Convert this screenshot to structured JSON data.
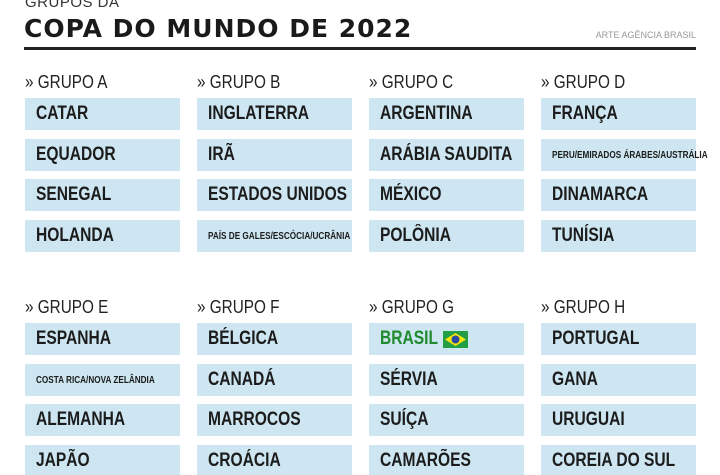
{
  "header": {
    "supertitle": "GRUPOS DA",
    "title": "COPA DO MUNDO DE 2022",
    "credit": "ARTE AGÊNCIA BRASIL"
  },
  "groups": [
    {
      "name": "» GRUPO A",
      "teams": [
        "CATAR",
        "EQUADOR",
        "SENEGAL",
        "HOLANDA"
      ]
    },
    {
      "name": "» GRUPO B",
      "teams": [
        "INGLATERRA",
        "IRÃ",
        "ESTADOS UNIDOS",
        "PAÍS DE GALES/ESCÓCIA/UCRÂNIA"
      ]
    },
    {
      "name": "» GRUPO C",
      "teams": [
        "ARGENTINA",
        "ARÁBIA SAUDITA",
        "MÉXICO",
        "POLÔNIA"
      ]
    },
    {
      "name": "» GRUPO D",
      "teams": [
        "FRANÇA",
        "PERU/EMIRADOS ÁRABES/AUSTRÁLIA",
        "DINAMARCA",
        "TUNÍSIA"
      ]
    },
    {
      "name": "» GRUPO E",
      "teams": [
        "ESPANHA",
        "COSTA RICA/NOVA ZELÂNDIA",
        "ALEMANHA",
        "JAPÃO"
      ]
    },
    {
      "name": "» GRUPO F",
      "teams": [
        "BÉLGICA",
        "CANADÁ",
        "MARROCOS",
        "CROÁCIA"
      ]
    },
    {
      "name": "» GRUPO G",
      "teams": [
        "BRASIL",
        "SÉRVIA",
        "SUÍÇA",
        "CAMARÕES"
      ]
    },
    {
      "name": "» GRUPO H",
      "teams": [
        "PORTUGAL",
        "GANA",
        "URUGUAI",
        "COREIA DO SUL"
      ]
    }
  ]
}
